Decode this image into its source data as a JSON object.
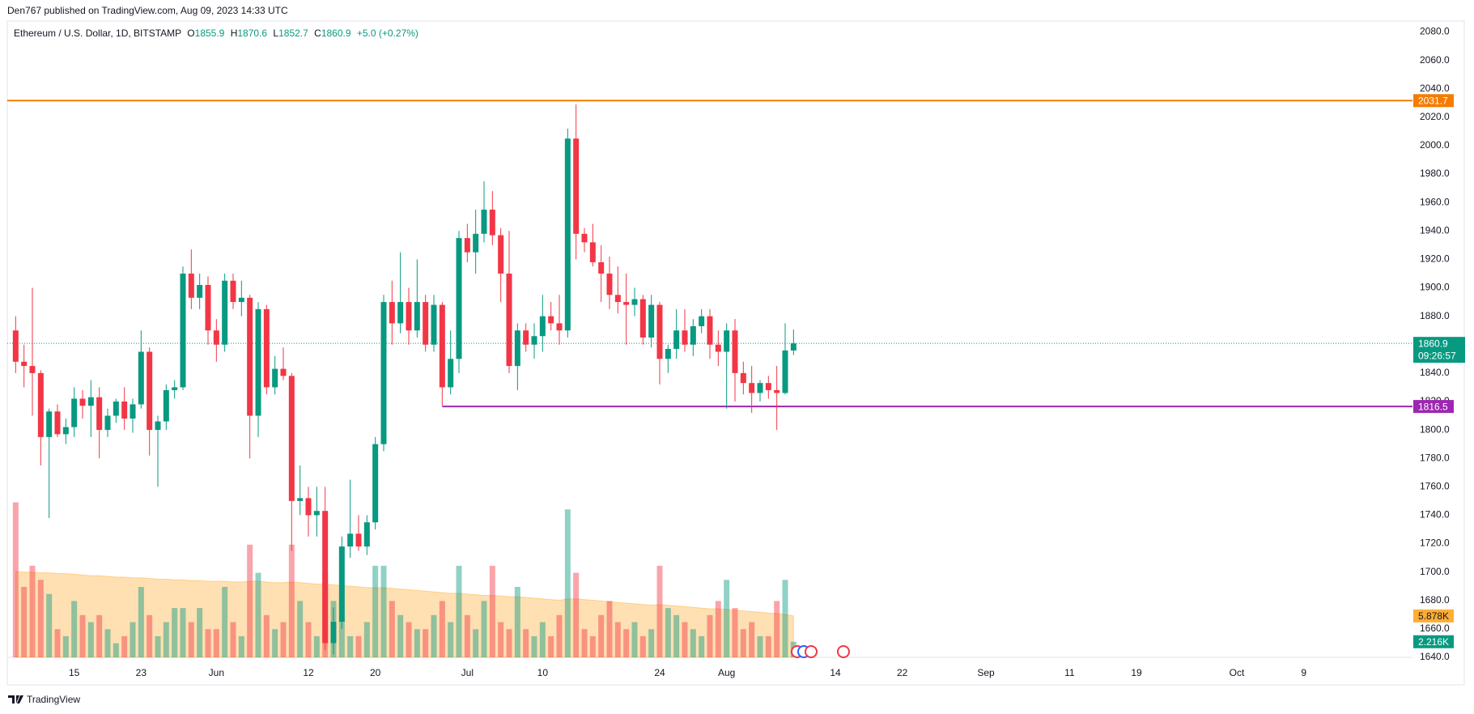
{
  "header": {
    "publisher": "Den767 published on TradingView.com, Aug 09, 2023 14:33 UTC"
  },
  "chart_data": {
    "type": "candlestick",
    "title": "Ethereum / U.S. Dollar, 1D, BITSTAMP",
    "legend_labels": [
      "O",
      "H",
      "L",
      "C"
    ],
    "change": "+5.0 (+0.27%)",
    "countdown": "09:26:57",
    "up_color": "#089981",
    "down_color": "#f23645",
    "x": [
      "2023-05-08",
      "2023-05-09",
      "2023-05-10",
      "2023-05-11",
      "2023-05-12",
      "2023-05-13",
      "2023-05-14",
      "2023-05-15",
      "2023-05-16",
      "2023-05-17",
      "2023-05-18",
      "2023-05-19",
      "2023-05-20",
      "2023-05-21",
      "2023-05-22",
      "2023-05-23",
      "2023-05-24",
      "2023-05-25",
      "2023-05-26",
      "2023-05-27",
      "2023-05-28",
      "2023-05-29",
      "2023-05-30",
      "2023-05-31",
      "2023-06-01",
      "2023-06-02",
      "2023-06-03",
      "2023-06-04",
      "2023-06-05",
      "2023-06-06",
      "2023-06-07",
      "2023-06-08",
      "2023-06-09",
      "2023-06-10",
      "2023-06-11",
      "2023-06-12",
      "2023-06-13",
      "2023-06-14",
      "2023-06-15",
      "2023-06-16",
      "2023-06-17",
      "2023-06-18",
      "2023-06-19",
      "2023-06-20",
      "2023-06-21",
      "2023-06-22",
      "2023-06-23",
      "2023-06-24",
      "2023-06-25",
      "2023-06-26",
      "2023-06-27",
      "2023-06-28",
      "2023-06-29",
      "2023-06-30",
      "2023-07-01",
      "2023-07-02",
      "2023-07-03",
      "2023-07-04",
      "2023-07-05",
      "2023-07-06",
      "2023-07-07",
      "2023-07-08",
      "2023-07-09",
      "2023-07-10",
      "2023-07-11",
      "2023-07-12",
      "2023-07-13",
      "2023-07-14",
      "2023-07-15",
      "2023-07-16",
      "2023-07-17",
      "2023-07-18",
      "2023-07-19",
      "2023-07-20",
      "2023-07-21",
      "2023-07-22",
      "2023-07-23",
      "2023-07-24",
      "2023-07-25",
      "2023-07-26",
      "2023-07-27",
      "2023-07-28",
      "2023-07-29",
      "2023-07-30",
      "2023-07-31",
      "2023-08-01",
      "2023-08-02",
      "2023-08-03",
      "2023-08-04",
      "2023-08-05",
      "2023-08-06",
      "2023-08-07",
      "2023-08-08",
      "2023-08-09"
    ],
    "open": [
      1870,
      1848,
      1845,
      1840,
      1795,
      1813,
      1797,
      1802,
      1822,
      1817,
      1823,
      1800,
      1810,
      1820,
      1808,
      1818,
      1855,
      1800,
      1806,
      1828,
      1830,
      1910,
      1893,
      1902,
      1870,
      1860,
      1905,
      1890,
      1893,
      1810,
      1885,
      1830,
      1843,
      1838,
      1750,
      1752,
      1740,
      1743,
      1650,
      1665,
      1718,
      1727,
      1718,
      1735,
      1790,
      1890,
      1875,
      1890,
      1870,
      1890,
      1860,
      1888,
      1830,
      1850,
      1935,
      1925,
      1938,
      1955,
      1937,
      1910,
      1845,
      1870,
      1860,
      1866,
      1880,
      1875,
      1870,
      2005,
      1938,
      1932,
      1918,
      1910,
      1895,
      1890,
      1888,
      1892,
      1865,
      1888,
      1850,
      1857,
      1870,
      1860,
      1873,
      1880,
      1860,
      1855,
      1870,
      1840,
      1833,
      1826,
      1833,
      1828,
      1826,
      1855.9
    ],
    "high": [
      1880,
      1860,
      1900,
      1842,
      1815,
      1818,
      1808,
      1830,
      1828,
      1835,
      1830,
      1815,
      1822,
      1830,
      1822,
      1870,
      1858,
      1810,
      1832,
      1835,
      1915,
      1927,
      1910,
      1908,
      1878,
      1910,
      1910,
      1905,
      1895,
      1890,
      1888,
      1852,
      1858,
      1840,
      1775,
      1760,
      1760,
      1760,
      1675,
      1725,
      1765,
      1740,
      1740,
      1795,
      1895,
      1905,
      1925,
      1900,
      1920,
      1895,
      1895,
      1890,
      1870,
      1940,
      1945,
      1955,
      1975,
      1968,
      1942,
      1940,
      1875,
      1875,
      1875,
      1895,
      1890,
      1895,
      2012,
      2029,
      1942,
      1945,
      1930,
      1922,
      1915,
      1910,
      1900,
      1895,
      1895,
      1890,
      1860,
      1885,
      1885,
      1878,
      1885,
      1885,
      1870,
      1875,
      1878,
      1848,
      1845,
      1835,
      1838,
      1845,
      1875,
      1870.6
    ],
    "low": [
      1840,
      1830,
      1810,
      1775,
      1738,
      1795,
      1790,
      1795,
      1808,
      1795,
      1780,
      1795,
      1805,
      1800,
      1798,
      1815,
      1782,
      1760,
      1800,
      1822,
      1828,
      1885,
      1885,
      1860,
      1848,
      1855,
      1885,
      1880,
      1780,
      1795,
      1825,
      1825,
      1835,
      1715,
      1740,
      1725,
      1725,
      1645,
      1642,
      1660,
      1710,
      1715,
      1712,
      1730,
      1785,
      1860,
      1868,
      1860,
      1865,
      1855,
      1855,
      1817,
      1825,
      1840,
      1918,
      1910,
      1932,
      1930,
      1890,
      1840,
      1828,
      1855,
      1850,
      1855,
      1870,
      1860,
      1865,
      1920,
      1925,
      1915,
      1890,
      1885,
      1882,
      1860,
      1880,
      1860,
      1858,
      1832,
      1840,
      1850,
      1855,
      1852,
      1868,
      1850,
      1845,
      1815,
      1820,
      1825,
      1812,
      1820,
      1822,
      1800,
      1825,
      1852.7
    ],
    "close": [
      1848,
      1845,
      1840,
      1795,
      1813,
      1797,
      1802,
      1822,
      1817,
      1823,
      1800,
      1810,
      1820,
      1808,
      1818,
      1855,
      1800,
      1806,
      1828,
      1830,
      1910,
      1893,
      1902,
      1870,
      1860,
      1905,
      1890,
      1893,
      1810,
      1885,
      1830,
      1843,
      1838,
      1750,
      1752,
      1740,
      1743,
      1650,
      1665,
      1718,
      1727,
      1718,
      1735,
      1790,
      1890,
      1875,
      1890,
      1870,
      1890,
      1860,
      1888,
      1830,
      1850,
      1935,
      1925,
      1938,
      1955,
      1937,
      1910,
      1845,
      1870,
      1860,
      1866,
      1880,
      1875,
      1870,
      2005,
      1938,
      1932,
      1918,
      1910,
      1895,
      1890,
      1888,
      1892,
      1865,
      1888,
      1850,
      1857,
      1870,
      1860,
      1873,
      1880,
      1860,
      1855,
      1870,
      1840,
      1833,
      1826,
      1833,
      1828,
      1826,
      1855.9,
      1860.9
    ],
    "volume": {
      "values": [
        22,
        10,
        13,
        11,
        9,
        4,
        3,
        8,
        6,
        5,
        6,
        4,
        2,
        3,
        5,
        10,
        6,
        3,
        5,
        7,
        7,
        5,
        7,
        4,
        4,
        10,
        5,
        3,
        16,
        12,
        6,
        4,
        5,
        16,
        8,
        5,
        3,
        12,
        8,
        6,
        3,
        3,
        5,
        13,
        13,
        8,
        6,
        5,
        4,
        4,
        6,
        8,
        5,
        13,
        6,
        4,
        8,
        13,
        5,
        4,
        10,
        4,
        3,
        5,
        3,
        6,
        21,
        12,
        4,
        3,
        6,
        8,
        5,
        4,
        5,
        3,
        4,
        13,
        7,
        6,
        5,
        4,
        3,
        6,
        8,
        11,
        7,
        4,
        5,
        3,
        3,
        8,
        11,
        2.216
      ],
      "last_label": "2.216K",
      "ma": [
        12.2,
        12.1,
        12.1,
        12.0,
        12.0,
        11.9,
        11.9,
        11.8,
        11.7,
        11.6,
        11.6,
        11.5,
        11.4,
        11.4,
        11.3,
        11.3,
        11.2,
        11.1,
        11.1,
        11.0,
        11.0,
        10.9,
        10.9,
        10.8,
        10.8,
        10.8,
        10.7,
        10.7,
        10.8,
        10.8,
        10.7,
        10.6,
        10.6,
        10.7,
        10.6,
        10.5,
        10.4,
        10.4,
        10.3,
        10.2,
        10.1,
        10.0,
        9.9,
        9.9,
        9.9,
        9.8,
        9.7,
        9.6,
        9.5,
        9.4,
        9.3,
        9.2,
        9.1,
        9.1,
        9.0,
        8.9,
        8.8,
        8.8,
        8.7,
        8.6,
        8.6,
        8.5,
        8.4,
        8.3,
        8.2,
        8.1,
        8.3,
        8.3,
        8.2,
        8.1,
        8.0,
        7.9,
        7.8,
        7.7,
        7.6,
        7.5,
        7.4,
        7.5,
        7.4,
        7.3,
        7.2,
        7.1,
        7.0,
        6.9,
        6.9,
        6.8,
        6.7,
        6.6,
        6.5,
        6.4,
        6.3,
        6.2,
        6.1,
        5.878
      ],
      "ma_label": "5.878K",
      "ma_color": "#ff9800"
    },
    "hlines": [
      {
        "value": 2031.7,
        "label": "2031.7",
        "color": "#f57c00",
        "start": "2023-05-07"
      },
      {
        "value": 1816.5,
        "label": "1816.5",
        "color": "#9c27b0",
        "start": "2023-06-28"
      }
    ],
    "xlim": [
      "2023-05-07",
      "2023-10-22"
    ],
    "xticks": [
      {
        "value": "2023-05-15",
        "label": "15"
      },
      {
        "value": "2023-05-23",
        "label": "23"
      },
      {
        "value": "2023-06-01",
        "label": "Jun"
      },
      {
        "value": "2023-06-12",
        "label": "12"
      },
      {
        "value": "2023-06-20",
        "label": "20"
      },
      {
        "value": "2023-07-01",
        "label": "Jul"
      },
      {
        "value": "2023-07-10",
        "label": "10"
      },
      {
        "value": "2023-07-24",
        "label": "24"
      },
      {
        "value": "2023-08-01",
        "label": "Aug"
      },
      {
        "value": "2023-08-14",
        "label": "14"
      },
      {
        "value": "2023-08-22",
        "label": "22"
      },
      {
        "value": "2023-09-01",
        "label": "Sep"
      },
      {
        "value": "2023-09-11",
        "label": "11"
      },
      {
        "value": "2023-09-19",
        "label": "19"
      },
      {
        "value": "2023-10-01",
        "label": "Oct"
      },
      {
        "value": "2023-10-09",
        "label": "9"
      }
    ],
    "ylim": [
      1640,
      2080
    ],
    "yticks": [
      {
        "value": 1640,
        "label": "1640.0"
      },
      {
        "value": 1660,
        "label": "1660.0"
      },
      {
        "value": 1680,
        "label": "1680.0"
      },
      {
        "value": 1700,
        "label": "1700.0"
      },
      {
        "value": 1720,
        "label": "1720.0"
      },
      {
        "value": 1740,
        "label": "1740.0"
      },
      {
        "value": 1760,
        "label": "1760.0"
      },
      {
        "value": 1780,
        "label": "1780.0"
      },
      {
        "value": 1800,
        "label": "1800.0"
      },
      {
        "value": 1820,
        "label": "1820.0"
      },
      {
        "value": 1840,
        "label": "1840.0"
      },
      {
        "value": 1860,
        "label": "1860.0"
      },
      {
        "value": 1880,
        "label": "1880.0"
      },
      {
        "value": 1900,
        "label": "1900.0"
      },
      {
        "value": 1920,
        "label": "1920.0"
      },
      {
        "value": 1940,
        "label": "1940.0"
      },
      {
        "value": 1960,
        "label": "1960.0"
      },
      {
        "value": 1980,
        "label": "1980.0"
      },
      {
        "value": 2000,
        "label": "2000.0"
      },
      {
        "value": 2020,
        "label": "2020.0"
      },
      {
        "value": 2040,
        "label": "2040.0"
      },
      {
        "value": 2060,
        "label": "2060.0"
      },
      {
        "value": 2080,
        "label": "2080.0"
      }
    ],
    "grid": true
  },
  "footer": {
    "brand": "TradingView"
  }
}
